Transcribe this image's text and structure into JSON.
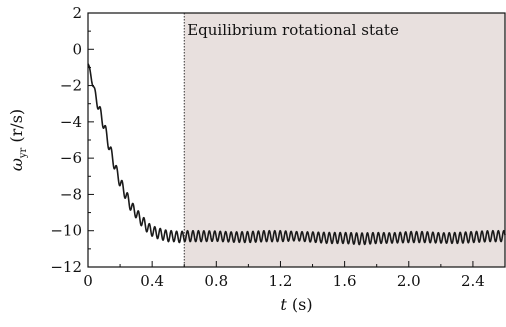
{
  "chart_data": {
    "type": "line",
    "title": "",
    "xlabel_var": "t",
    "xlabel_unit": " (s)",
    "ylabel_var": "ω",
    "ylabel_sub": "yr",
    "ylabel_unit": " (r/s)",
    "xlim": [
      0,
      2.6
    ],
    "ylim": [
      -12,
      2
    ],
    "xticks": [
      0,
      0.4,
      0.8,
      1.2,
      1.6,
      2.0,
      2.4
    ],
    "xtick_labels": [
      "0",
      "0.4",
      "0.8",
      "1.2",
      "1.6",
      "2.0",
      "2.4"
    ],
    "yticks": [
      2,
      0,
      -2,
      -4,
      -6,
      -8,
      -10,
      -12
    ],
    "ytick_labels": [
      "2",
      "0",
      "−2",
      "−4",
      "−6",
      "−8",
      "−10",
      "−12"
    ],
    "grid": false,
    "region": {
      "label": "Equilibrium rotational state",
      "x_start": 0.6,
      "x_end": 2.6,
      "color": "#e8e0de"
    },
    "series": [
      {
        "color": "#1a1a1a",
        "x": [
          0.0,
          0.02,
          0.04,
          0.06,
          0.08,
          0.1,
          0.12,
          0.14,
          0.16,
          0.18,
          0.2,
          0.22,
          0.24,
          0.26,
          0.28,
          0.3,
          0.32,
          0.34,
          0.36,
          0.38,
          0.4,
          0.42,
          0.44,
          0.46,
          0.48,
          0.5,
          0.52,
          0.54,
          0.56,
          0.58,
          0.6,
          0.7,
          0.8,
          0.9,
          1.0,
          1.1,
          1.2,
          1.3,
          1.4,
          1.5,
          1.6,
          1.7,
          1.8,
          1.9,
          2.0,
          2.1,
          2.2,
          2.3,
          2.4,
          2.5,
          2.6
        ],
        "y": [
          -0.8,
          -1.5,
          -2.3,
          -3.0,
          -3.6,
          -4.2,
          -4.9,
          -5.6,
          -6.2,
          -6.8,
          -7.3,
          -7.7,
          -8.1,
          -8.5,
          -8.8,
          -9.0,
          -9.3,
          -9.5,
          -9.7,
          -9.9,
          -10.0,
          -10.1,
          -10.15,
          -10.2,
          -10.25,
          -10.3,
          -10.3,
          -10.3,
          -10.35,
          -10.35,
          -10.3,
          -10.3,
          -10.3,
          -10.35,
          -10.35,
          -10.3,
          -10.3,
          -10.3,
          -10.35,
          -10.4,
          -10.4,
          -10.45,
          -10.4,
          -10.4,
          -10.35,
          -10.35,
          -10.4,
          -10.4,
          -10.35,
          -10.3,
          -10.3
        ],
        "oscillation_amplitude": [
          0.1,
          0.15,
          0.2,
          0.25,
          0.3,
          0.3,
          0.3,
          0.3,
          0.3,
          0.3,
          0.3,
          0.3,
          0.3,
          0.3,
          0.3,
          0.3,
          0.3,
          0.3,
          0.3,
          0.3,
          0.3,
          0.3,
          0.3,
          0.3,
          0.3,
          0.3,
          0.3,
          0.3,
          0.3,
          0.3,
          0.3,
          0.3,
          0.28,
          0.28,
          0.3,
          0.3,
          0.3,
          0.25,
          0.28,
          0.3,
          0.3,
          0.32,
          0.3,
          0.28,
          0.3,
          0.3,
          0.28,
          0.3,
          0.3,
          0.3,
          0.3
        ],
        "oscillation_period": 0.034
      }
    ]
  }
}
